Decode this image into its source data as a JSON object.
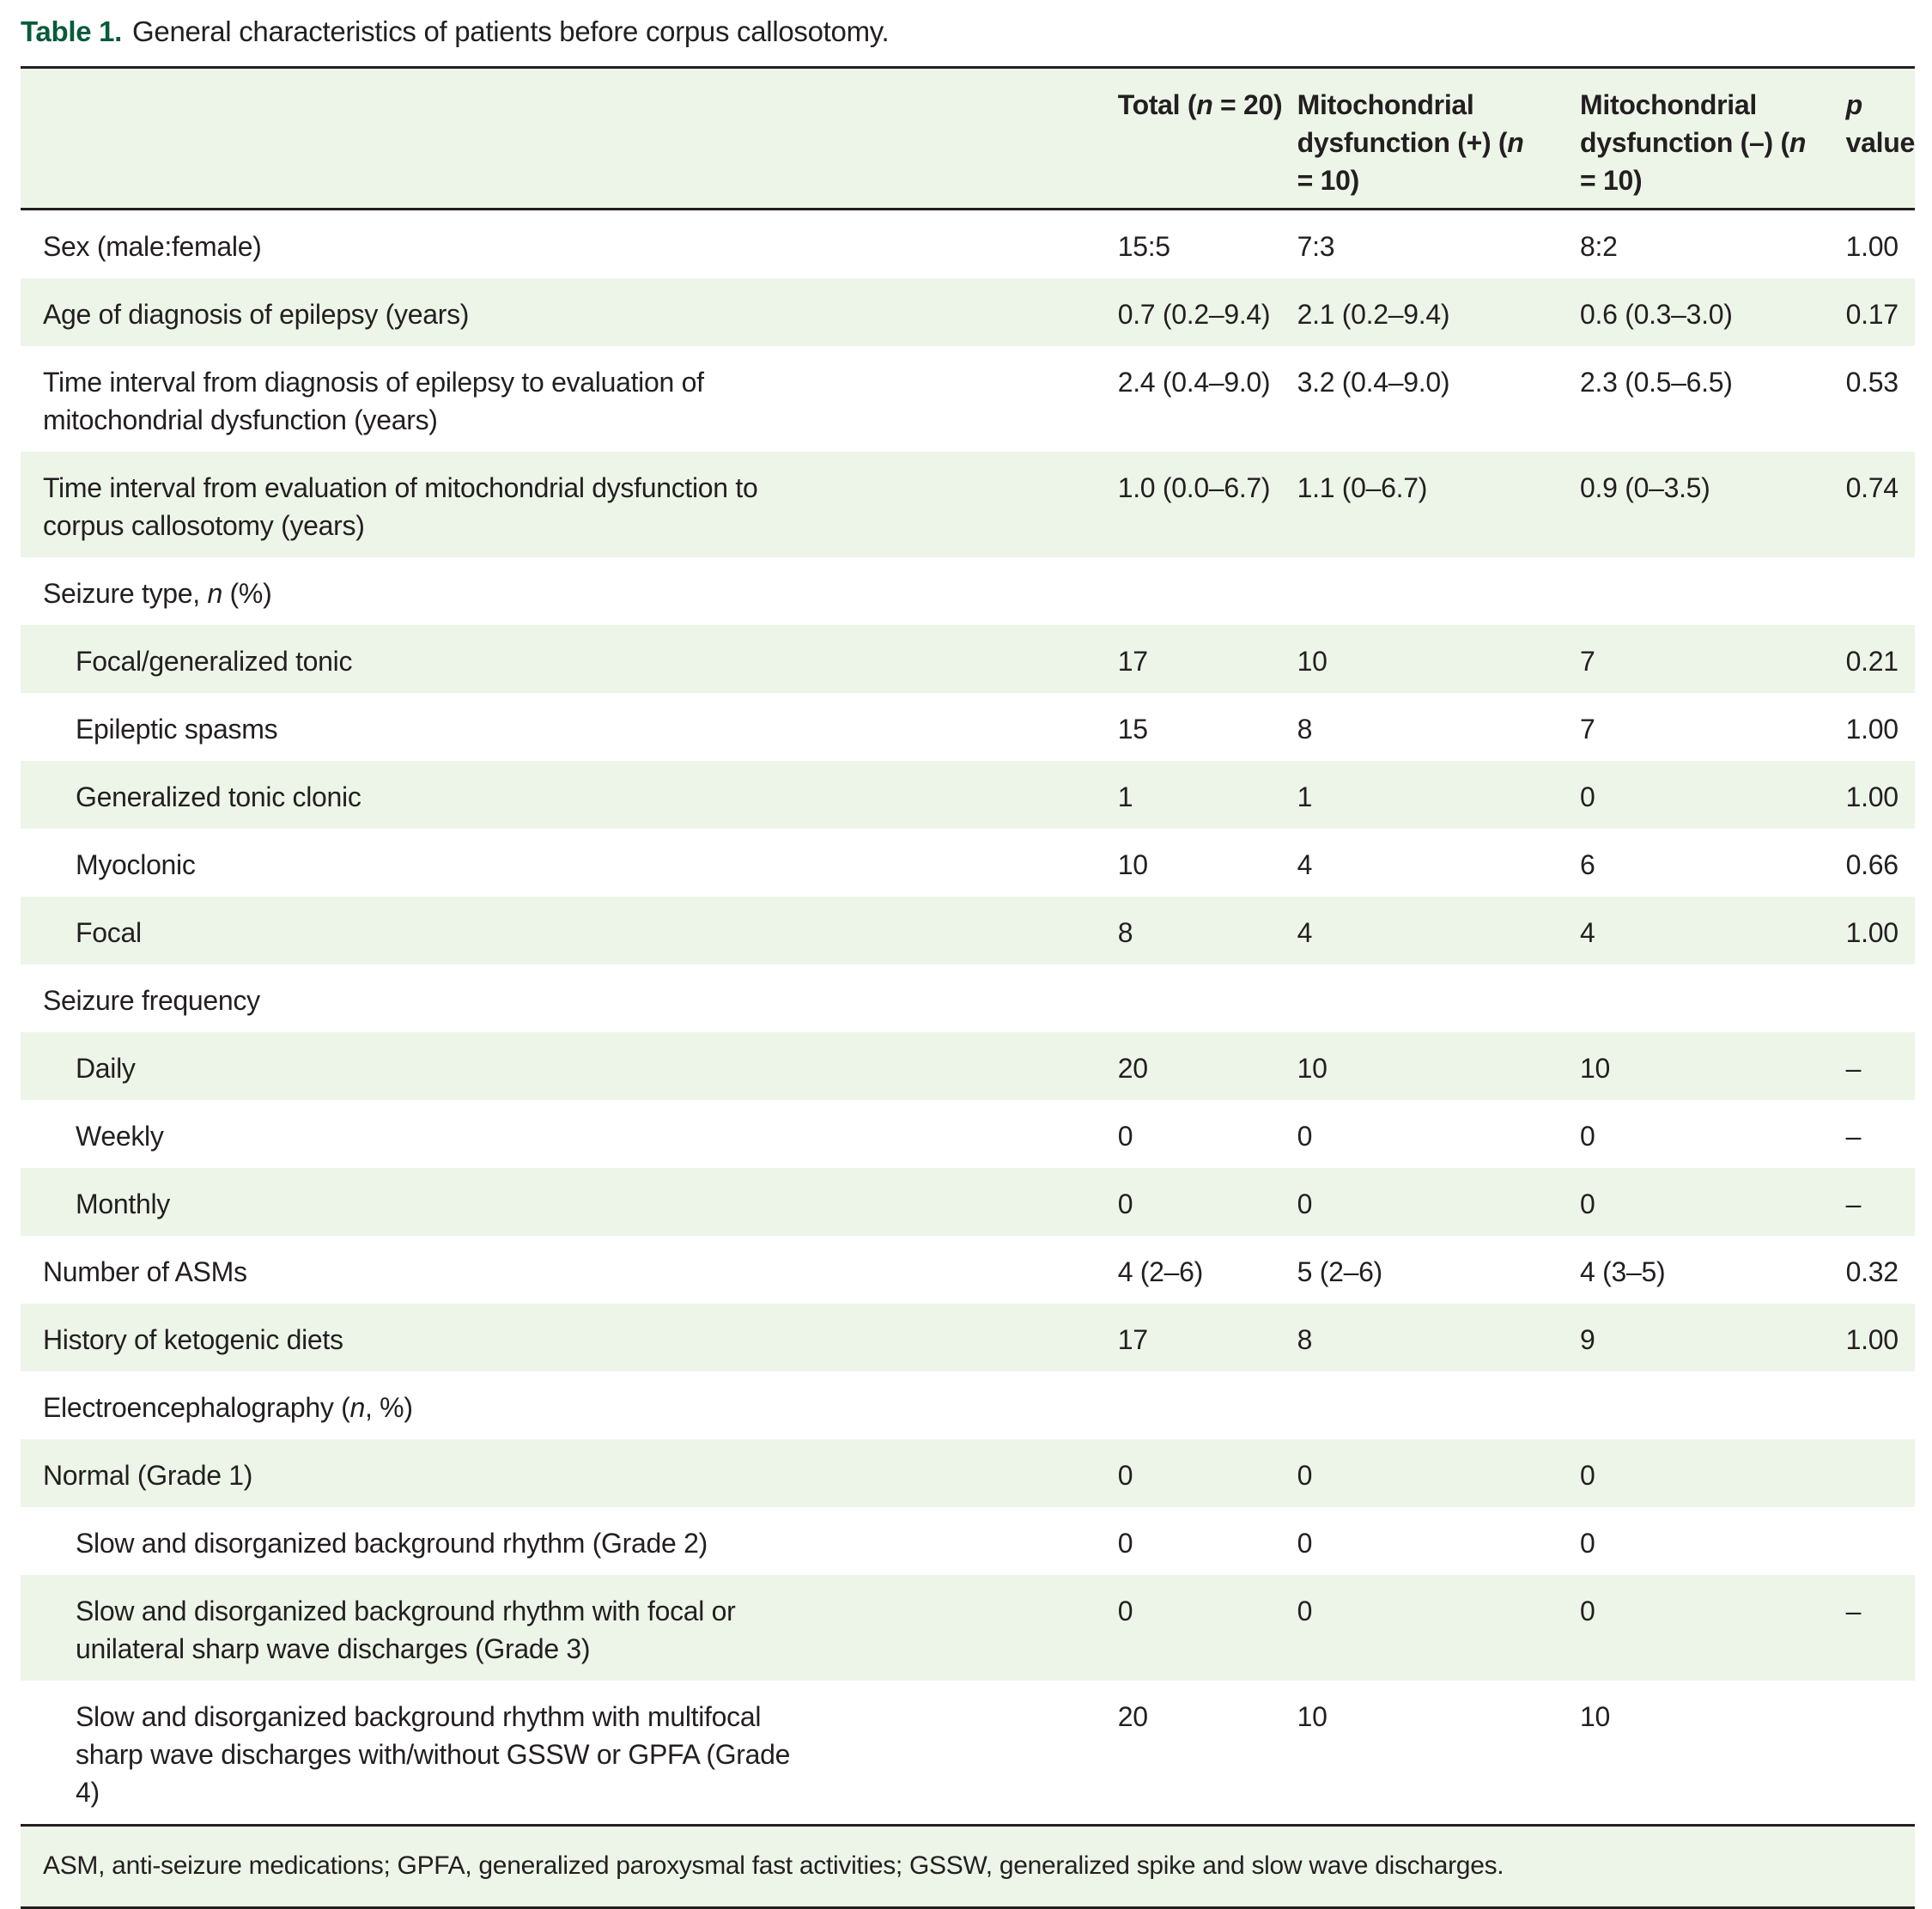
{
  "caption": {
    "label": "Table 1.",
    "text": "General characteristics of patients before corpus callosotomy."
  },
  "headers": {
    "total": [
      "Total (",
      "n",
      " = 20)"
    ],
    "mito_pos": [
      "Mitochondrial dysfunction (+) (",
      "n",
      " = 10)"
    ],
    "mito_neg": [
      "Mitochondrial dysfunction (–) (",
      "n",
      " = 10)"
    ],
    "p": [
      "p",
      " value"
    ]
  },
  "rows": [
    {
      "label": "Sex (male:female)",
      "indent": false,
      "values": [
        "15:5",
        "7:3",
        "8:2",
        "1.00"
      ]
    },
    {
      "label": "Age of diagnosis of epilepsy (years)",
      "indent": false,
      "values": [
        "0.7 (0.2–9.4)",
        "2.1 (0.2–9.4)",
        "0.6 (0.3–3.0)",
        "0.17"
      ]
    },
    {
      "label": "Time interval from diagnosis of epilepsy to evaluation of mitochondrial dysfunction (years)",
      "indent": false,
      "values": [
        "2.4 (0.4–9.0)",
        "3.2 (0.4–9.0)",
        "2.3 (0.5–6.5)",
        "0.53"
      ]
    },
    {
      "label": "Time interval from evaluation of mitochondrial dysfunction to corpus callosotomy (years)",
      "indent": false,
      "values": [
        "1.0 (0.0–6.7)",
        "1.1 (0–6.7)",
        "0.9 (0–3.5)",
        "0.74"
      ]
    },
    {
      "label": "Seizure type, n (%)",
      "indent": false,
      "values": [
        "",
        "",
        "",
        ""
      ]
    },
    {
      "label": "Focal/generalized tonic",
      "indent": true,
      "values": [
        "17",
        "10",
        "7",
        "0.21"
      ]
    },
    {
      "label": "Epileptic spasms",
      "indent": true,
      "values": [
        "15",
        "8",
        "7",
        "1.00"
      ]
    },
    {
      "label": "Generalized tonic clonic",
      "indent": true,
      "values": [
        "1",
        "1",
        "0",
        "1.00"
      ]
    },
    {
      "label": "Myoclonic",
      "indent": true,
      "values": [
        "10",
        "4",
        "6",
        "0.66"
      ]
    },
    {
      "label": "Focal",
      "indent": true,
      "values": [
        "8",
        "4",
        "4",
        "1.00"
      ]
    },
    {
      "label": "Seizure frequency",
      "indent": false,
      "values": [
        "",
        "",
        "",
        ""
      ]
    },
    {
      "label": "Daily",
      "indent": true,
      "values": [
        "20",
        "10",
        "10",
        "–"
      ]
    },
    {
      "label": "Weekly",
      "indent": true,
      "values": [
        "0",
        "0",
        "0",
        "–"
      ]
    },
    {
      "label": "Monthly",
      "indent": true,
      "values": [
        "0",
        "0",
        "0",
        "–"
      ]
    },
    {
      "label": "Number of ASMs",
      "indent": false,
      "values": [
        "4 (2–6)",
        "5 (2–6)",
        "4 (3–5)",
        "0.32"
      ]
    },
    {
      "label": "History of ketogenic diets",
      "indent": false,
      "values": [
        "17",
        "8",
        "9",
        "1.00"
      ]
    },
    {
      "label": "Electroencephalography (n, %)",
      "indent": false,
      "values": [
        "",
        "",
        "",
        ""
      ]
    },
    {
      "label": "Normal (Grade 1)",
      "indent": false,
      "values": [
        "0",
        "0",
        "0",
        ""
      ]
    },
    {
      "label": "Slow and disorganized background rhythm (Grade 2)",
      "indent": true,
      "values": [
        "0",
        "0",
        "0",
        ""
      ]
    },
    {
      "label": "Slow and disorganized background rhythm with focal or unilateral sharp wave discharges (Grade 3)",
      "indent": true,
      "values": [
        "0",
        "0",
        "0",
        "–"
      ]
    },
    {
      "label": "Slow and disorganized background rhythm with multifocal sharp wave discharges with/without GSSW or GPFA (Grade 4)",
      "indent": true,
      "values": [
        "20",
        "10",
        "10",
        ""
      ]
    }
  ],
  "footnote": "ASM, anti-seizure medications; GPFA, generalized paroxysmal fast activities; GSSW, generalized spike and slow wave discharges."
}
